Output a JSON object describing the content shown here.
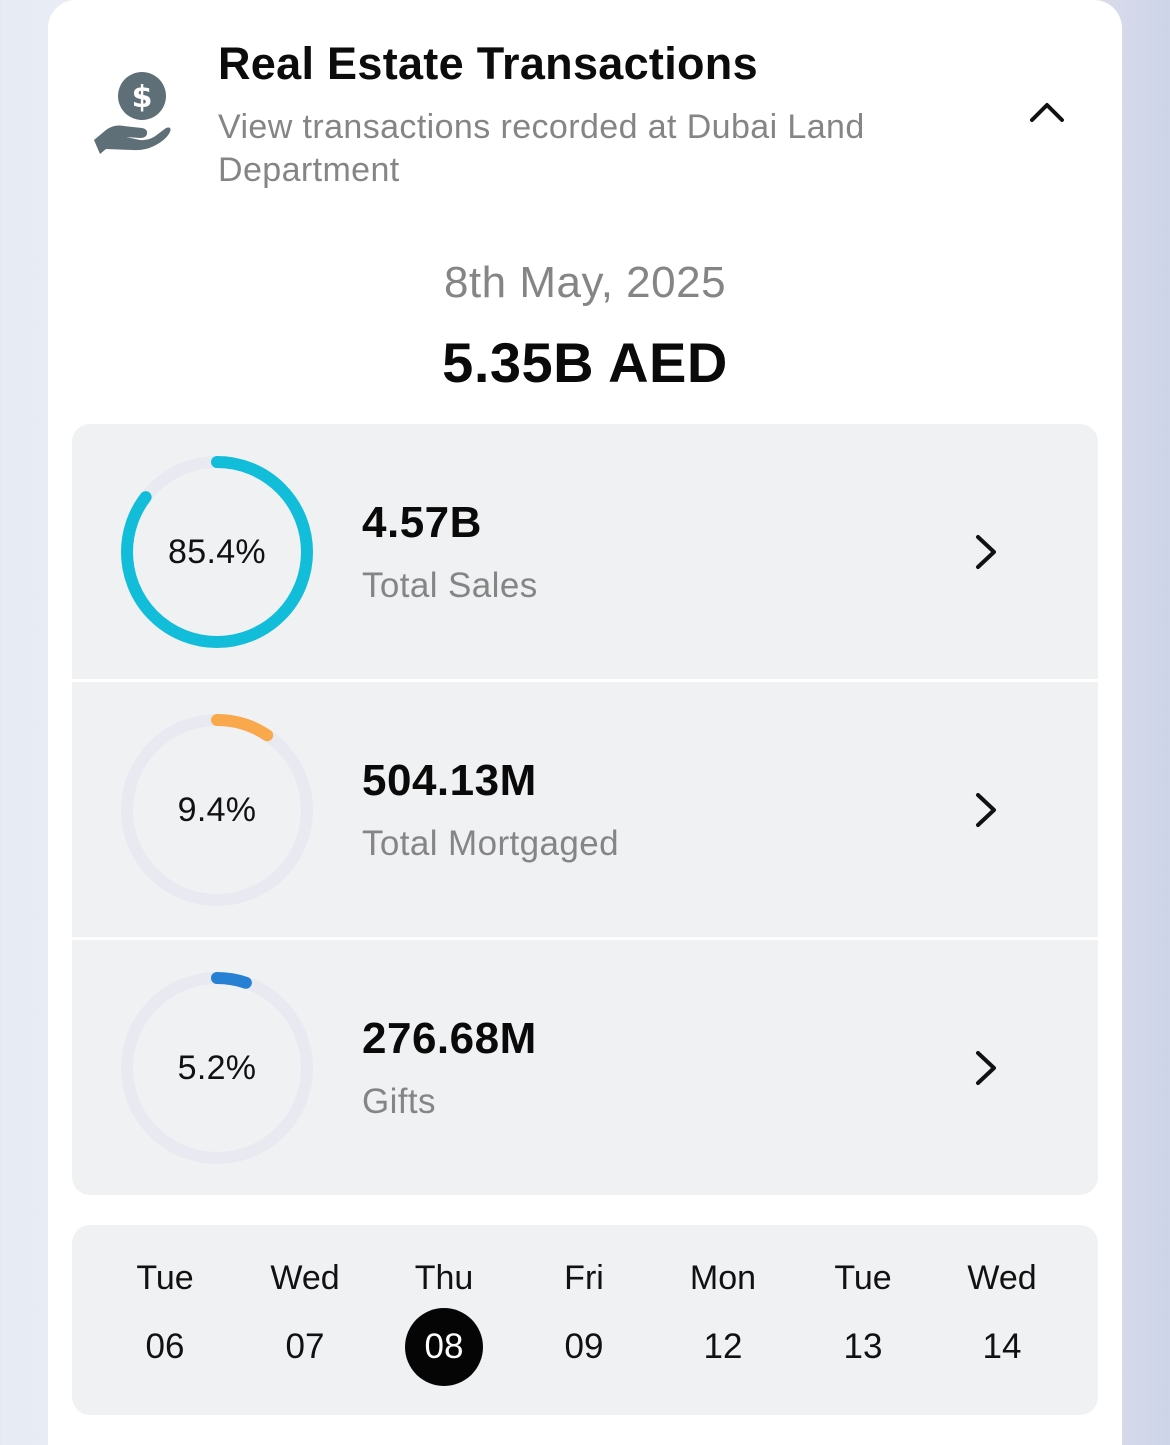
{
  "header": {
    "title": "Real Estate Transactions",
    "subtitle": "View transactions recorded at Dubai Land Department",
    "icon": "hand-dollar-icon",
    "collapse_icon": "chevron-up-icon"
  },
  "summary": {
    "date": "8th May, 2025",
    "total": "5.35B AED"
  },
  "breakdown": [
    {
      "percent_label": "85.4%",
      "fraction": 0.854,
      "value": "4.57B",
      "label": "Total Sales",
      "color": "#12bdd9"
    },
    {
      "percent_label": "9.4%",
      "fraction": 0.094,
      "value": "504.13M",
      "label": "Total Mortgaged",
      "color": "#f9a94b"
    },
    {
      "percent_label": "5.2%",
      "fraction": 0.052,
      "value": "276.68M",
      "label": "Gifts",
      "color": "#2680d4"
    }
  ],
  "days": [
    {
      "name": "Tue",
      "num": "06",
      "selected": false
    },
    {
      "name": "Wed",
      "num": "07",
      "selected": false
    },
    {
      "name": "Thu",
      "num": "08",
      "selected": true
    },
    {
      "name": "Fri",
      "num": "09",
      "selected": false
    },
    {
      "name": "Mon",
      "num": "12",
      "selected": false
    },
    {
      "name": "Tue",
      "num": "13",
      "selected": false
    },
    {
      "name": "Wed",
      "num": "14",
      "selected": false
    }
  ],
  "colors": {
    "track": "#e8e9f1",
    "accent_selected": "#050505"
  }
}
